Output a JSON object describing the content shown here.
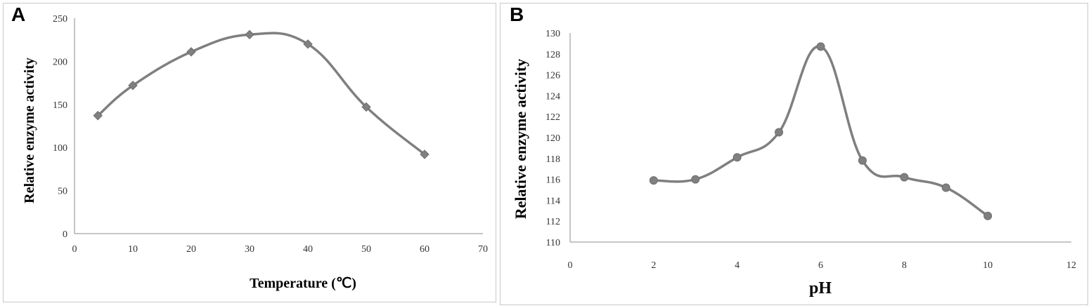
{
  "chart_data": [
    {
      "panel_label": "A",
      "type": "line",
      "smooth": true,
      "marker": "diamond",
      "xlabel": "Temperature (℃)",
      "ylabel": "Relative enzyme activity",
      "xlim": [
        0,
        70
      ],
      "ylim": [
        0,
        250
      ],
      "xticks": [
        "0",
        "10",
        "20",
        "30",
        "40",
        "50",
        "60",
        "70"
      ],
      "yticks": [
        "0",
        "50",
        "100",
        "150",
        "200",
        "250"
      ],
      "grid": false,
      "series": [
        {
          "x": [
            4,
            10,
            20,
            30,
            40,
            50,
            60
          ],
          "y": [
            137,
            172,
            211,
            231,
            220,
            147,
            92
          ]
        }
      ],
      "line_color": "#7f7f7f"
    },
    {
      "panel_label": "B",
      "type": "line",
      "smooth": true,
      "marker": "circle",
      "xlabel": "pH",
      "ylabel": "Relative enzyme activity",
      "xlim": [
        0,
        12
      ],
      "ylim": [
        110,
        130
      ],
      "xticks": [
        "0",
        "2",
        "4",
        "6",
        "8",
        "10",
        "12"
      ],
      "yticks": [
        "110",
        "112",
        "114",
        "116",
        "118",
        "120",
        "122",
        "124",
        "126",
        "128",
        "130"
      ],
      "grid": false,
      "series": [
        {
          "x": [
            2,
            3,
            4,
            5,
            6,
            7,
            8,
            9,
            10
          ],
          "y": [
            115.9,
            116.0,
            118.1,
            120.5,
            128.7,
            117.8,
            116.2,
            115.2,
            112.5
          ]
        }
      ],
      "line_color": "#7f7f7f"
    }
  ]
}
